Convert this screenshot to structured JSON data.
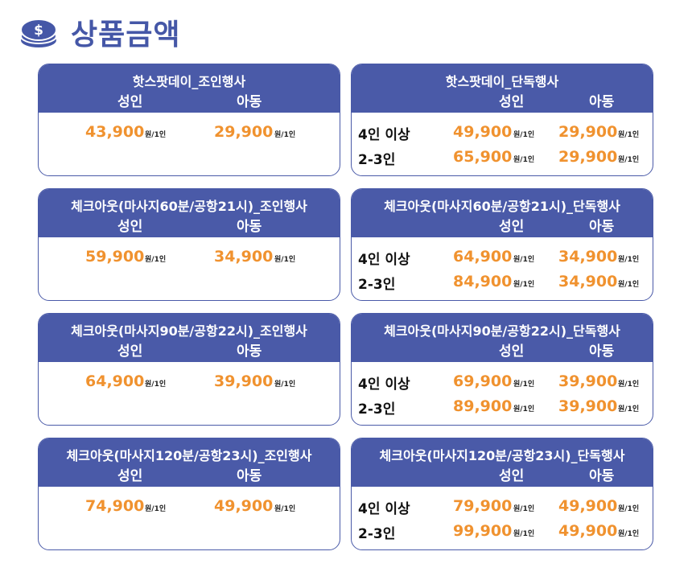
{
  "title": "상품금액",
  "col_adult": "성인",
  "col_child": "아동",
  "row_4plus": "4인 이상",
  "row_2to3": "2-3인",
  "unit": "원/1인",
  "colors": {
    "brand": "#4a5aa8",
    "price": "#f0922f"
  },
  "cards": [
    {
      "title": "핫스팟데이_조인행사",
      "type": "join",
      "adult": "43,900",
      "child": "29,900"
    },
    {
      "title": "핫스팟데이_단독행사",
      "type": "private",
      "rows": [
        {
          "adult": "49,900",
          "child": "29,900"
        },
        {
          "adult": "65,900",
          "child": "29,900"
        }
      ]
    },
    {
      "title": "체크아웃(마사지60분/공항21시)_조인행사",
      "type": "join",
      "adult": "59,900",
      "child": "34,900"
    },
    {
      "title": "체크아웃(마사지60분/공항21시)_단독행사",
      "type": "private",
      "rows": [
        {
          "adult": "64,900",
          "child": "34,900"
        },
        {
          "adult": "84,900",
          "child": "34,900"
        }
      ]
    },
    {
      "title": "체크아웃(마사지90분/공항22시)_조인행사",
      "type": "join",
      "adult": "64,900",
      "child": "39,900"
    },
    {
      "title": "체크아웃(마사지90분/공항22시)_단독행사",
      "type": "private",
      "rows": [
        {
          "adult": "69,900",
          "child": "39,900"
        },
        {
          "adult": "89,900",
          "child": "39,900"
        }
      ]
    },
    {
      "title": "체크아웃(마사지120분/공항23시)_조인행사",
      "type": "join",
      "adult": "74,900",
      "child": "49,900"
    },
    {
      "title": "체크아웃(마사지120분/공항23시)_단독행사",
      "type": "private",
      "rows": [
        {
          "adult": "79,900",
          "child": "49,900"
        },
        {
          "adult": "99,900",
          "child": "49,900"
        }
      ]
    }
  ]
}
